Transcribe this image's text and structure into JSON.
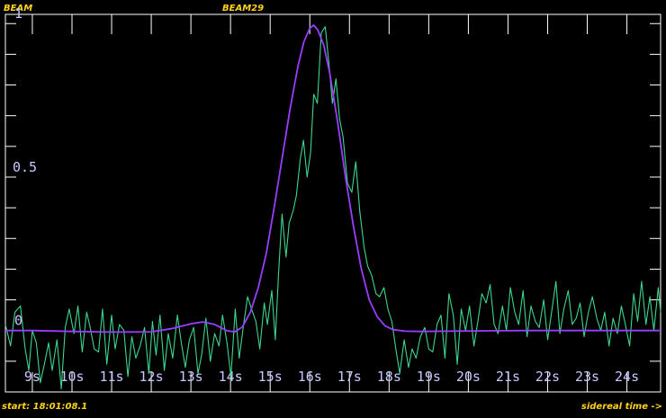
{
  "header": {
    "left_label": "BEAM",
    "right_label": "BEAM29"
  },
  "footer": {
    "start_time": "start: 18:01:08.1",
    "axis_note": "sidereal time ->"
  },
  "colors": {
    "background": "#000000",
    "frame": "#ffffff",
    "data_series": "#3dd68c",
    "fit_series": "#9a3dff",
    "label": "#ffd21a",
    "tick_text": "#c8c8ff"
  },
  "chart_data": {
    "type": "line",
    "xlim": [
      8.32,
      24.85
    ],
    "ylim": [
      -0.2,
      1.03
    ],
    "x_ticks": [
      {
        "value": 9,
        "label": "9s"
      },
      {
        "value": 10,
        "label": "10s"
      },
      {
        "value": 11,
        "label": "11s"
      },
      {
        "value": 12,
        "label": "12s"
      },
      {
        "value": 13,
        "label": "13s"
      },
      {
        "value": 14,
        "label": "14s"
      },
      {
        "value": 15,
        "label": "15s"
      },
      {
        "value": 16,
        "label": "16s"
      },
      {
        "value": 17,
        "label": "17s"
      },
      {
        "value": 18,
        "label": "18s"
      },
      {
        "value": 19,
        "label": "19s"
      },
      {
        "value": 20,
        "label": "20s"
      },
      {
        "value": 21,
        "label": "21s"
      },
      {
        "value": 22,
        "label": "22s"
      },
      {
        "value": 23,
        "label": "23s"
      },
      {
        "value": 24,
        "label": "24s"
      }
    ],
    "y_labels": [
      {
        "value": 1,
        "label": "1"
      },
      {
        "value": 0.5,
        "label": "0.5"
      },
      {
        "value": 0,
        "label": "0"
      }
    ],
    "y_minor_step": 0.1,
    "grid": false,
    "series": [
      {
        "style": "noisy",
        "x": [
          8.32,
          8.45,
          8.56,
          8.7,
          8.82,
          8.91,
          9.0,
          9.1,
          9.2,
          9.32,
          9.41,
          9.5,
          9.62,
          9.73,
          9.83,
          9.93,
          10.05,
          10.15,
          10.26,
          10.37,
          10.46,
          10.56,
          10.67,
          10.77,
          10.88,
          11.0,
          11.09,
          11.2,
          11.31,
          11.41,
          11.51,
          11.61,
          11.72,
          11.83,
          11.94,
          12.03,
          12.12,
          12.22,
          12.33,
          12.43,
          12.54,
          12.66,
          12.76,
          12.86,
          12.96,
          13.07,
          13.18,
          13.27,
          13.38,
          13.49,
          13.6,
          13.71,
          13.8,
          13.91,
          14.01,
          14.12,
          14.22,
          14.33,
          14.43,
          14.53,
          14.64,
          14.74,
          14.85,
          14.93,
          15.04,
          15.13,
          15.21,
          15.3,
          15.4,
          15.48,
          15.58,
          15.66,
          15.76,
          15.84,
          15.93,
          16.02,
          16.1,
          16.19,
          16.29,
          16.39,
          16.49,
          16.57,
          16.66,
          16.75,
          16.84,
          16.95,
          17.06,
          17.16,
          17.26,
          17.37,
          17.46,
          17.56,
          17.67,
          17.76,
          17.87,
          17.97,
          18.07,
          18.17,
          18.27,
          18.38,
          18.49,
          18.58,
          18.68,
          18.79,
          18.9,
          19.0,
          19.1,
          19.21,
          19.31,
          19.41,
          19.51,
          19.62,
          19.72,
          19.82,
          19.93,
          20.03,
          20.14,
          20.24,
          20.34,
          20.45,
          20.55,
          20.65,
          20.75,
          20.86,
          20.96,
          21.06,
          21.17,
          21.27,
          21.38,
          21.48,
          21.58,
          21.69,
          21.79,
          21.9,
          22.0,
          22.1,
          22.21,
          22.31,
          22.41,
          22.52,
          22.62,
          22.72,
          22.82,
          22.92,
          23.03,
          23.13,
          23.24,
          23.34,
          23.44,
          23.55,
          23.65,
          23.76,
          23.86,
          23.96,
          24.07,
          24.17,
          24.27,
          24.37,
          24.48,
          24.58,
          24.68,
          24.79,
          24.85
        ],
        "y": [
          0.02,
          -0.05,
          0.06,
          0.08,
          -0.06,
          -0.13,
          0.0,
          -0.04,
          -0.17,
          -0.1,
          -0.04,
          -0.13,
          -0.03,
          -0.19,
          0.01,
          0.07,
          -0.01,
          0.08,
          -0.07,
          0.06,
          0.01,
          -0.06,
          -0.07,
          0.07,
          -0.11,
          0.05,
          -0.06,
          0.02,
          0.0,
          -0.15,
          -0.02,
          -0.09,
          -0.05,
          0.01,
          -0.14,
          0.03,
          -0.08,
          0.05,
          -0.13,
          -0.01,
          -0.09,
          0.05,
          -0.04,
          -0.12,
          -0.03,
          0.01,
          -0.14,
          -0.08,
          0.04,
          -0.1,
          -0.01,
          -0.05,
          0.05,
          -0.04,
          -0.15,
          0.07,
          -0.09,
          0.02,
          0.11,
          0.07,
          0.03,
          -0.06,
          0.09,
          0.02,
          0.13,
          -0.03,
          0.18,
          0.38,
          0.24,
          0.35,
          0.39,
          0.44,
          0.56,
          0.62,
          0.5,
          0.58,
          0.77,
          0.74,
          0.97,
          0.99,
          0.86,
          0.74,
          0.82,
          0.69,
          0.63,
          0.48,
          0.45,
          0.55,
          0.39,
          0.27,
          0.21,
          0.18,
          0.12,
          0.11,
          0.14,
          0.07,
          0.03,
          -0.06,
          -0.14,
          -0.03,
          -0.12,
          -0.06,
          -0.09,
          -0.02,
          0.01,
          -0.06,
          -0.07,
          0.02,
          0.05,
          -0.09,
          0.12,
          0.05,
          -0.11,
          0.07,
          0.0,
          0.08,
          -0.05,
          0.03,
          0.12,
          0.09,
          0.15,
          0.02,
          -0.01,
          0.08,
          0.0,
          0.14,
          0.06,
          0.02,
          0.13,
          -0.02,
          0.08,
          0.03,
          0.01,
          0.1,
          -0.03,
          0.06,
          0.16,
          -0.01,
          0.07,
          0.13,
          0.02,
          0.04,
          0.09,
          -0.02,
          0.06,
          0.11,
          0.04,
          0.0,
          0.06,
          -0.05,
          0.04,
          -0.01,
          0.08,
          0.02,
          -0.05,
          0.12,
          0.03,
          0.16,
          0.02,
          0.11,
          0.0,
          0.14,
          0.06
        ]
      },
      {
        "style": "fit",
        "x": [
          8.32,
          9.0,
          10.0,
          11.0,
          12.0,
          12.5,
          13.0,
          13.3,
          13.6,
          13.9,
          14.1,
          14.3,
          14.5,
          14.7,
          14.9,
          15.1,
          15.3,
          15.5,
          15.7,
          15.85,
          16.0,
          16.1,
          16.2,
          16.35,
          16.5,
          16.7,
          16.9,
          17.1,
          17.3,
          17.5,
          17.7,
          17.9,
          18.1,
          18.4,
          18.8,
          19.5,
          20.5,
          21.5,
          22.5,
          23.5,
          24.5,
          24.85
        ],
        "y": [
          0.0,
          0.0,
          -0.003,
          -0.005,
          -0.004,
          0.006,
          0.022,
          0.028,
          0.02,
          0.0,
          -0.005,
          0.012,
          0.06,
          0.14,
          0.25,
          0.4,
          0.56,
          0.72,
          0.86,
          0.94,
          0.985,
          0.995,
          0.98,
          0.93,
          0.84,
          0.68,
          0.5,
          0.34,
          0.2,
          0.1,
          0.045,
          0.015,
          0.003,
          -0.002,
          -0.003,
          -0.002,
          -0.001,
          0.0,
          0.0,
          0.0,
          0.0,
          0.0
        ]
      }
    ]
  }
}
